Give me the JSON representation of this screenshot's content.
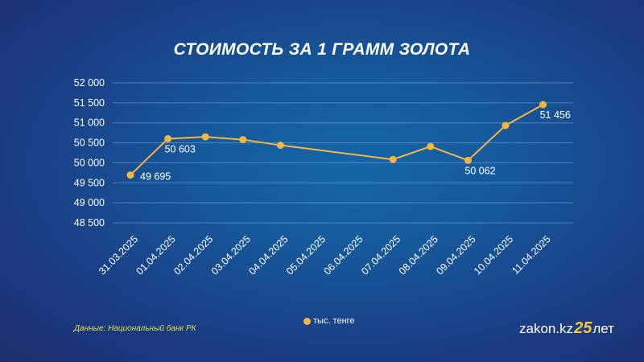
{
  "chart_data": {
    "type": "line",
    "title": "СТОИМОСТЬ ЗА 1 ГРАММ ЗОЛОТА",
    "categories": [
      "31.03.2025",
      "01.04.2025",
      "02.04.2025",
      "03.04.2025",
      "04.04.2025",
      "05.04.2025",
      "06.04.2025",
      "07.04.2025",
      "08.04.2025",
      "09.04.2025",
      "10.04.2025",
      "11.04.2025"
    ],
    "series": [
      {
        "name": "тыс. тенге",
        "color": "#f4b63f",
        "values": [
          49695,
          50603,
          50650,
          50580,
          50440,
          null,
          null,
          50085,
          50410,
          50062,
          50935,
          51456
        ]
      }
    ],
    "data_labels": [
      {
        "index": 0,
        "text": "49 695"
      },
      {
        "index": 1,
        "text": "50 603"
      },
      {
        "index": 9,
        "text": "50 062"
      },
      {
        "index": 11,
        "text": "51 456"
      }
    ],
    "yticks": [
      {
        "v": 52000,
        "t": "52 000"
      },
      {
        "v": 51500,
        "t": "51 500"
      },
      {
        "v": 51000,
        "t": "51 000"
      },
      {
        "v": 50500,
        "t": "50 500"
      },
      {
        "v": 50000,
        "t": "50 000"
      },
      {
        "v": 49500,
        "t": "49 500"
      },
      {
        "v": 49000,
        "t": "49 000"
      },
      {
        "v": 48500,
        "t": "48 500"
      }
    ],
    "ylim": [
      48500,
      52000
    ],
    "grid": true,
    "legend": "bottom-center",
    "xlabel": "",
    "ylabel": ""
  },
  "source": "Данные: Национальный банк РК",
  "logo": {
    "text": "zakon.kz",
    "num": "25",
    "suffix": "лет"
  }
}
